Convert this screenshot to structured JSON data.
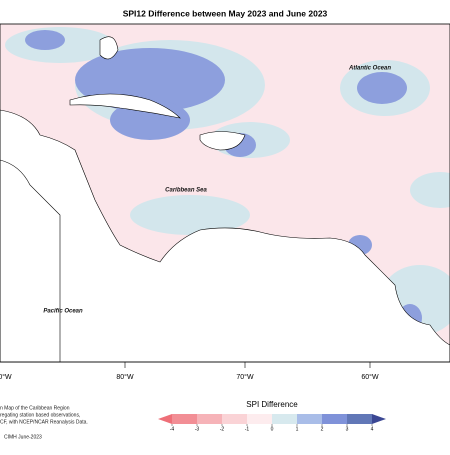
{
  "title": "SPI12 Difference between May 2023 and June 2023",
  "map": {
    "ocean_labels": [
      "Atlantic Ocean",
      "Caribbean Sea",
      "Pacific Ocean"
    ],
    "longitude_labels": [
      "0°W",
      "80°W",
      "70°W",
      "60°W"
    ]
  },
  "note": [
    "n Map of the Caribbean Region",
    "regating station based observations,",
    "CF, with NCEP/NCAR Reanalysis Data."
  ],
  "legend": {
    "title": "SPI Difference",
    "ticks": [
      -4,
      -3,
      -2,
      -1,
      0,
      1,
      2,
      3,
      4
    ],
    "colors": [
      "#ee6f78",
      "#f28e95",
      "#f6b3b8",
      "#fad3d6",
      "#fdecee",
      "#d7e9ee",
      "#a9bde8",
      "#7f92d9",
      "#6177b7",
      "#3b4793"
    ]
  },
  "footer": "CIMH June-2023"
}
